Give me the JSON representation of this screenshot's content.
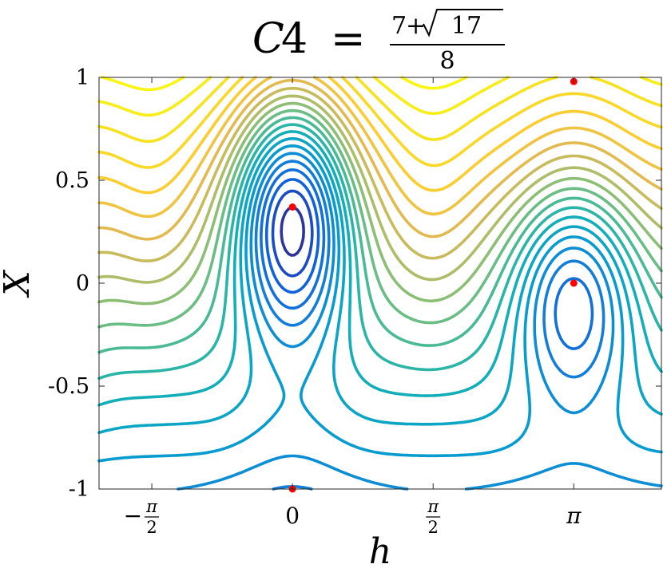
{
  "chart_data": {
    "type": "contour",
    "title": {
      "lhs_var": "C",
      "lhs_sub": "4",
      "eq": "=",
      "num_a": "7",
      "num_op": "+",
      "num_radicand": "17",
      "den": "8"
    },
    "xlabel": "h",
    "ylabel": "X",
    "x_ticks": [
      {
        "value": -1.5708,
        "label_sign": "−",
        "label_num": "π",
        "label_den": "2",
        "kind": "frac"
      },
      {
        "value": 0,
        "label": "0",
        "kind": "plain"
      },
      {
        "value": 1.5708,
        "label_num": "π",
        "label_den": "2",
        "kind": "frac"
      },
      {
        "value": 3.14159,
        "label": "π",
        "kind": "plain"
      }
    ],
    "y_ticks": [
      {
        "value": 1,
        "label": "1"
      },
      {
        "value": 0.5,
        "label": "0.5"
      },
      {
        "value": 0,
        "label": "0"
      },
      {
        "value": -0.5,
        "label": "-0.5"
      },
      {
        "value": -1,
        "label": "-1"
      }
    ],
    "xlim": [
      -2.16,
      4.12
    ],
    "ylim": [
      -1,
      1
    ],
    "grid": false,
    "colormap": "parula",
    "contour_levels": 22,
    "critical_points": [
      {
        "x": 0,
        "y": 0.37
      },
      {
        "x": 3.14159,
        "y": 0
      },
      {
        "x": 3.14159,
        "y": 0.98
      },
      {
        "x": 0,
        "y": -1
      }
    ],
    "marker_color": "#ff0000"
  }
}
